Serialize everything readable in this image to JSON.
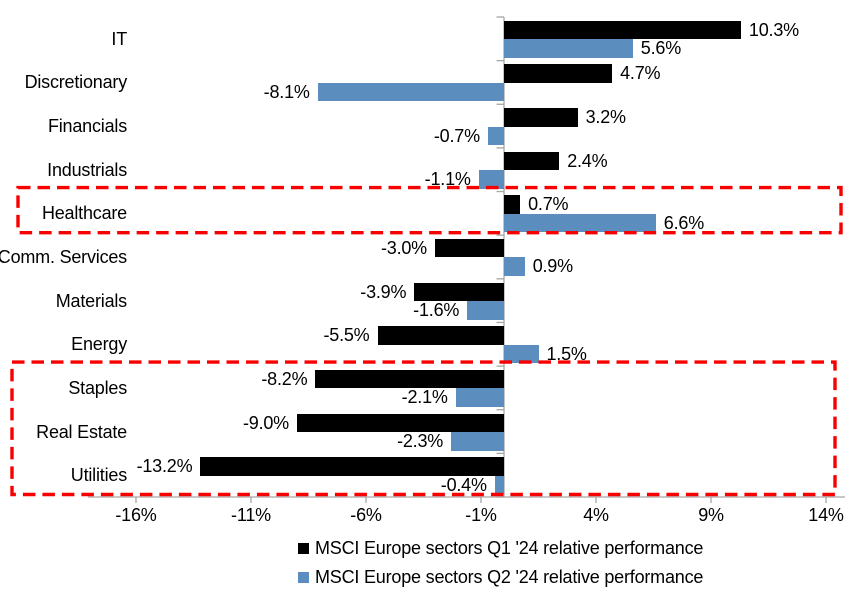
{
  "chart_data": {
    "type": "bar",
    "orientation": "horizontal",
    "title": "",
    "categories": [
      "IT",
      "Discretionary",
      "Financials",
      "Industrials",
      "Healthcare",
      "Comm. Services",
      "Materials",
      "Energy",
      "Staples",
      "Real Estate",
      "Utilities"
    ],
    "series": [
      {
        "name": "MSCI Europe sectors Q1 '24 relative performance",
        "color": "#000000",
        "values": [
          10.3,
          4.7,
          3.2,
          2.4,
          0.7,
          -3.0,
          -3.9,
          -5.5,
          -8.2,
          -9.0,
          -13.2
        ],
        "labels": [
          "10.3%",
          "4.7%",
          "3.2%",
          "2.4%",
          "0.7%",
          "-3.0%",
          "-3.9%",
          "-5.5%",
          "-8.2%",
          "-9.0%",
          "-13.2%"
        ]
      },
      {
        "name": "MSCI Europe sectors Q2 '24 relative performance",
        "color": "#5B8DBE",
        "values": [
          5.6,
          -8.1,
          -0.7,
          -1.1,
          6.6,
          0.9,
          -1.6,
          1.5,
          -2.1,
          -2.3,
          -0.4
        ],
        "labels": [
          "5.6%",
          "-8.1%",
          "-0.7%",
          "-1.1%",
          "6.6%",
          "0.9%",
          "-1.6%",
          "1.5%",
          "-2.1%",
          "-2.3%",
          "-0.4%"
        ]
      }
    ],
    "x_axis": {
      "unit": "%",
      "min": -18.1,
      "max": 14.8,
      "ticks": [
        -16,
        -11,
        -6,
        -1,
        4,
        9,
        14
      ],
      "tick_labels": [
        "-16%",
        "-11%",
        "-6%",
        "-1%",
        "4%",
        "9%",
        "14%"
      ],
      "grid": false
    },
    "legend": {
      "position": "bottom",
      "entries": [
        "MSCI Europe sectors Q1 '24 relative performance",
        "MSCI Europe sectors Q2 '24 relative performance"
      ]
    },
    "annotations": [
      {
        "type": "highlight-box",
        "style": "red-dashed",
        "categories": [
          "Healthcare"
        ]
      },
      {
        "type": "highlight-box",
        "style": "red-dashed",
        "categories": [
          "Staples",
          "Real Estate",
          "Utilities"
        ]
      }
    ],
    "colors": {
      "q1_bar": "#000000",
      "q2_bar": "#5B8DBE",
      "highlight_box": "#F90000",
      "axis": "#A6A6A6",
      "text": "#000000",
      "background": "#FFFFFF"
    }
  }
}
